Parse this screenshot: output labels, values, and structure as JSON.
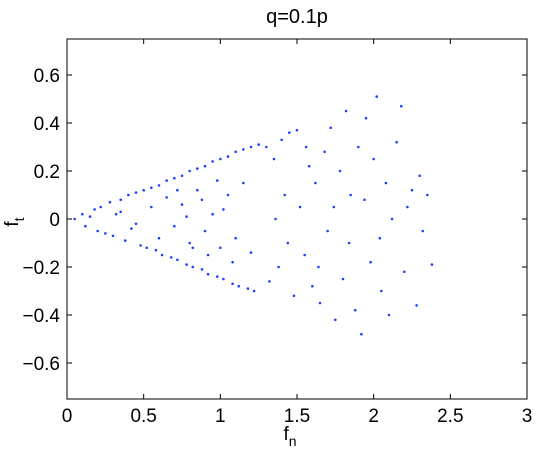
{
  "chart_data": {
    "type": "scatter",
    "title": "q=0.1p",
    "xlabel": "f_n",
    "ylabel": "f_t",
    "xlim": [
      0,
      3
    ],
    "ylim": [
      -0.75,
      0.75
    ],
    "xticks": [
      0,
      0.5,
      1,
      1.5,
      2,
      2.5,
      3
    ],
    "xtick_labels": [
      "0",
      "0.5",
      "1",
      "1.5",
      "2",
      "2.5",
      "3"
    ],
    "yticks": [
      -0.6,
      -0.4,
      -0.2,
      0,
      0.2,
      0.4,
      0.6
    ],
    "ytick_labels": [
      "−0.6",
      "−0.4",
      "−0.2",
      "0",
      "0.2",
      "0.4",
      "0.6"
    ],
    "grid": false,
    "legend": "none",
    "marker_color": "#1f3fff",
    "series": [
      {
        "points": [
          [
            0.05,
            0.0
          ],
          [
            0.1,
            0.02
          ],
          [
            0.12,
            -0.03
          ],
          [
            0.15,
            0.01
          ],
          [
            0.18,
            0.04
          ],
          [
            0.2,
            -0.05
          ],
          [
            0.22,
            0.05
          ],
          [
            0.25,
            -0.06
          ],
          [
            0.28,
            0.07
          ],
          [
            0.3,
            -0.07
          ],
          [
            0.32,
            0.02
          ],
          [
            0.35,
            0.08
          ],
          [
            0.38,
            -0.09
          ],
          [
            0.4,
            0.1
          ],
          [
            0.42,
            -0.04
          ],
          [
            0.45,
            0.11
          ],
          [
            0.48,
            -0.11
          ],
          [
            0.5,
            0.12
          ],
          [
            0.52,
            -0.12
          ],
          [
            0.55,
            0.13
          ],
          [
            0.58,
            -0.13
          ],
          [
            0.6,
            0.14
          ],
          [
            0.62,
            -0.15
          ],
          [
            0.65,
            0.16
          ],
          [
            0.68,
            -0.16
          ],
          [
            0.7,
            0.17
          ],
          [
            0.72,
            -0.17
          ],
          [
            0.75,
            0.18
          ],
          [
            0.78,
            -0.19
          ],
          [
            0.8,
            0.2
          ],
          [
            0.82,
            -0.2
          ],
          [
            0.85,
            0.21
          ],
          [
            0.88,
            -0.21
          ],
          [
            0.9,
            0.22
          ],
          [
            0.92,
            -0.23
          ],
          [
            0.95,
            0.24
          ],
          [
            0.98,
            -0.24
          ],
          [
            1.0,
            0.25
          ],
          [
            1.02,
            -0.25
          ],
          [
            1.05,
            0.26
          ],
          [
            1.08,
            -0.27
          ],
          [
            1.1,
            0.28
          ],
          [
            1.12,
            -0.28
          ],
          [
            1.15,
            0.29
          ],
          [
            1.18,
            -0.29
          ],
          [
            1.2,
            0.3
          ],
          [
            1.22,
            -0.3
          ],
          [
            1.25,
            0.31
          ],
          [
            0.35,
            0.03
          ],
          [
            0.45,
            -0.02
          ],
          [
            0.55,
            0.05
          ],
          [
            0.6,
            -0.08
          ],
          [
            0.65,
            0.09
          ],
          [
            0.7,
            -0.03
          ],
          [
            0.75,
            0.06
          ],
          [
            0.8,
            -0.1
          ],
          [
            0.85,
            0.12
          ],
          [
            0.9,
            -0.05
          ],
          [
            0.95,
            0.02
          ],
          [
            1.0,
            -0.12
          ],
          [
            1.05,
            0.1
          ],
          [
            1.1,
            -0.08
          ],
          [
            1.15,
            0.15
          ],
          [
            1.2,
            -0.14
          ],
          [
            0.78,
            0.01
          ],
          [
            0.88,
            0.08
          ],
          [
            0.92,
            -0.15
          ],
          [
            0.98,
            0.16
          ],
          [
            1.02,
            0.04
          ],
          [
            1.08,
            -0.18
          ],
          [
            0.72,
            0.12
          ],
          [
            0.82,
            -0.12
          ],
          [
            1.3,
            0.3
          ],
          [
            1.35,
            0.25
          ],
          [
            1.4,
            0.33
          ],
          [
            1.45,
            0.36
          ],
          [
            1.5,
            0.37
          ],
          [
            1.38,
            -0.2
          ],
          [
            1.42,
            0.1
          ],
          [
            1.48,
            -0.32
          ],
          [
            1.52,
            0.05
          ],
          [
            1.55,
            -0.15
          ],
          [
            1.58,
            0.22
          ],
          [
            1.6,
            -0.28
          ],
          [
            1.62,
            0.15
          ],
          [
            1.65,
            -0.35
          ],
          [
            1.68,
            0.28
          ],
          [
            1.7,
            -0.05
          ],
          [
            1.72,
            0.38
          ],
          [
            1.75,
            -0.42
          ],
          [
            1.78,
            0.2
          ],
          [
            1.8,
            -0.25
          ],
          [
            1.82,
            0.45
          ],
          [
            1.85,
            0.1
          ],
          [
            1.88,
            -0.38
          ],
          [
            1.9,
            0.3
          ],
          [
            1.92,
            -0.48
          ],
          [
            1.95,
            0.42
          ],
          [
            1.98,
            -0.18
          ],
          [
            2.0,
            0.25
          ],
          [
            2.02,
            0.51
          ],
          [
            2.05,
            -0.3
          ],
          [
            2.08,
            0.15
          ],
          [
            2.1,
            -0.4
          ],
          [
            2.15,
            0.32
          ],
          [
            2.18,
            0.47
          ],
          [
            2.2,
            -0.22
          ],
          [
            2.25,
            0.12
          ],
          [
            2.28,
            -0.36
          ],
          [
            2.3,
            0.18
          ],
          [
            2.35,
            0.1
          ],
          [
            2.38,
            -0.19
          ],
          [
            1.32,
            -0.26
          ],
          [
            1.36,
            0.0
          ],
          [
            1.44,
            -0.1
          ],
          [
            1.56,
            0.3
          ],
          [
            1.64,
            -0.2
          ],
          [
            1.74,
            0.05
          ],
          [
            1.84,
            -0.1
          ],
          [
            1.94,
            0.08
          ],
          [
            2.04,
            -0.08
          ],
          [
            2.12,
            0.0
          ],
          [
            2.22,
            0.05
          ],
          [
            2.32,
            -0.05
          ]
        ]
      }
    ]
  }
}
